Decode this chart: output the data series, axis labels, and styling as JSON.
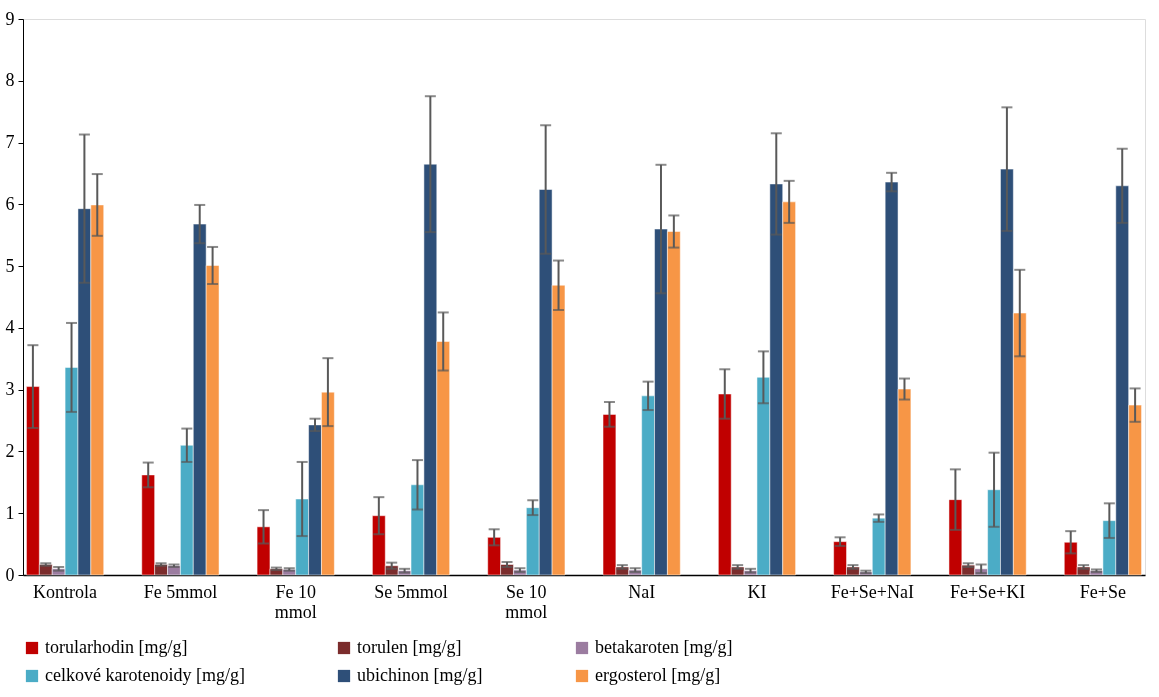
{
  "chart_data": {
    "type": "bar",
    "categories": [
      "Kontrola",
      "Fe 5mmol",
      "Fe 10 mmol",
      "Se 5mmol",
      "Se 10 mmol",
      "NaI",
      "KI",
      "Fe+Se+NaI",
      "Fe+Se+KI",
      "Fe+Se"
    ],
    "series": [
      {
        "name": "torularhodin [mg/g]",
        "color": "#c00000",
        "values": [
          3.05,
          1.62,
          0.78,
          0.96,
          0.61,
          2.6,
          2.93,
          0.54,
          1.22,
          0.53
        ],
        "errors": [
          0.67,
          0.2,
          0.27,
          0.3,
          0.13,
          0.2,
          0.4,
          0.07,
          0.49,
          0.18
        ]
      },
      {
        "name": "torulen [mg/g]",
        "color": "#7b2c2c",
        "values": [
          0.17,
          0.17,
          0.1,
          0.15,
          0.17,
          0.13,
          0.13,
          0.13,
          0.16,
          0.13
        ],
        "errors": [
          0.02,
          0.02,
          0.02,
          0.05,
          0.04,
          0.03,
          0.03,
          0.03,
          0.03,
          0.03
        ]
      },
      {
        "name": "betakaroten [mg/g]",
        "color": "#9b7ca0",
        "values": [
          0.1,
          0.15,
          0.09,
          0.07,
          0.08,
          0.08,
          0.07,
          0.05,
          0.1,
          0.07
        ],
        "errors": [
          0.03,
          0.02,
          0.02,
          0.03,
          0.03,
          0.03,
          0.03,
          0.02,
          0.07,
          0.02
        ]
      },
      {
        "name": "celkové karotenoidy [mg/g]",
        "color": "#4bacc6",
        "values": [
          3.36,
          2.1,
          1.23,
          1.46,
          1.09,
          2.9,
          3.2,
          0.92,
          1.38,
          0.88
        ],
        "errors": [
          0.72,
          0.27,
          0.6,
          0.4,
          0.12,
          0.23,
          0.42,
          0.06,
          0.6,
          0.28
        ]
      },
      {
        "name": "ubichinon [mg/g]",
        "color": "#2e4f78",
        "values": [
          5.93,
          5.68,
          2.43,
          6.65,
          6.24,
          5.6,
          6.33,
          6.36,
          6.57,
          6.3
        ],
        "errors": [
          1.2,
          0.31,
          0.1,
          1.1,
          1.04,
          1.04,
          0.82,
          0.15,
          1.0,
          0.6
        ]
      },
      {
        "name": "ergosterol [mg/g]",
        "color": "#f79646",
        "values": [
          5.99,
          5.01,
          2.96,
          3.78,
          4.69,
          5.56,
          6.04,
          3.01,
          4.24,
          2.75
        ],
        "errors": [
          0.5,
          0.3,
          0.55,
          0.47,
          0.4,
          0.26,
          0.34,
          0.17,
          0.7,
          0.27
        ]
      }
    ],
    "ylim": [
      0,
      9
    ],
    "yticks": [
      0,
      1,
      2,
      3,
      4,
      5,
      6,
      7,
      8,
      9
    ],
    "grid": false,
    "legend": "bottom"
  }
}
